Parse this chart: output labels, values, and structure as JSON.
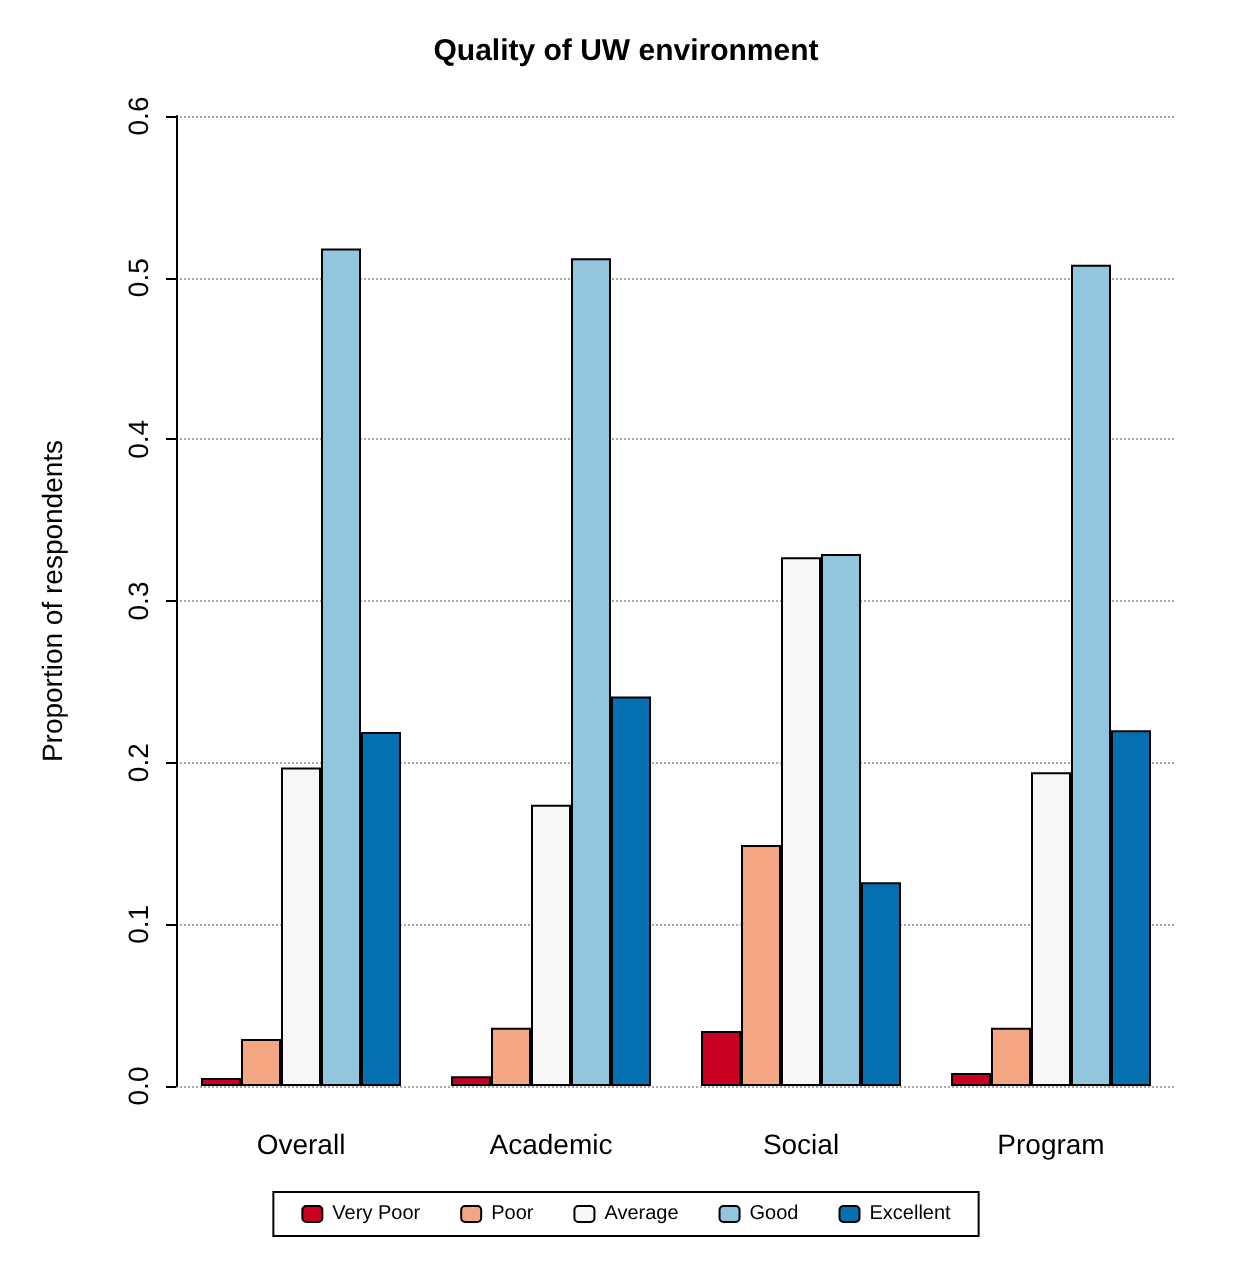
{
  "chart_data": {
    "type": "bar",
    "title": "Quality of UW environment",
    "ylabel": "Proportion of respondents",
    "categories": [
      "Overall",
      "Academic",
      "Social",
      "Program"
    ],
    "series": [
      {
        "name": "Very Poor",
        "color": "#ca0020",
        "values": [
          0.005,
          0.006,
          0.034,
          0.008
        ]
      },
      {
        "name": "Poor",
        "color": "#f4a582",
        "values": [
          0.029,
          0.036,
          0.149,
          0.036
        ]
      },
      {
        "name": "Average",
        "color": "#f7f7f7",
        "values": [
          0.197,
          0.174,
          0.327,
          0.194
        ]
      },
      {
        "name": "Good",
        "color": "#92c5de",
        "values": [
          0.518,
          0.512,
          0.329,
          0.508
        ]
      },
      {
        "name": "Excellent",
        "color": "#0571b0",
        "values": [
          0.219,
          0.241,
          0.126,
          0.22
        ]
      }
    ],
    "ylim": [
      0,
      0.6
    ],
    "yticks": [
      {
        "value": 0,
        "label": "0.0"
      },
      0.1,
      0.2,
      0.3,
      0.4,
      0.5,
      0.6
    ],
    "grid": "y",
    "legend": "bottom"
  }
}
